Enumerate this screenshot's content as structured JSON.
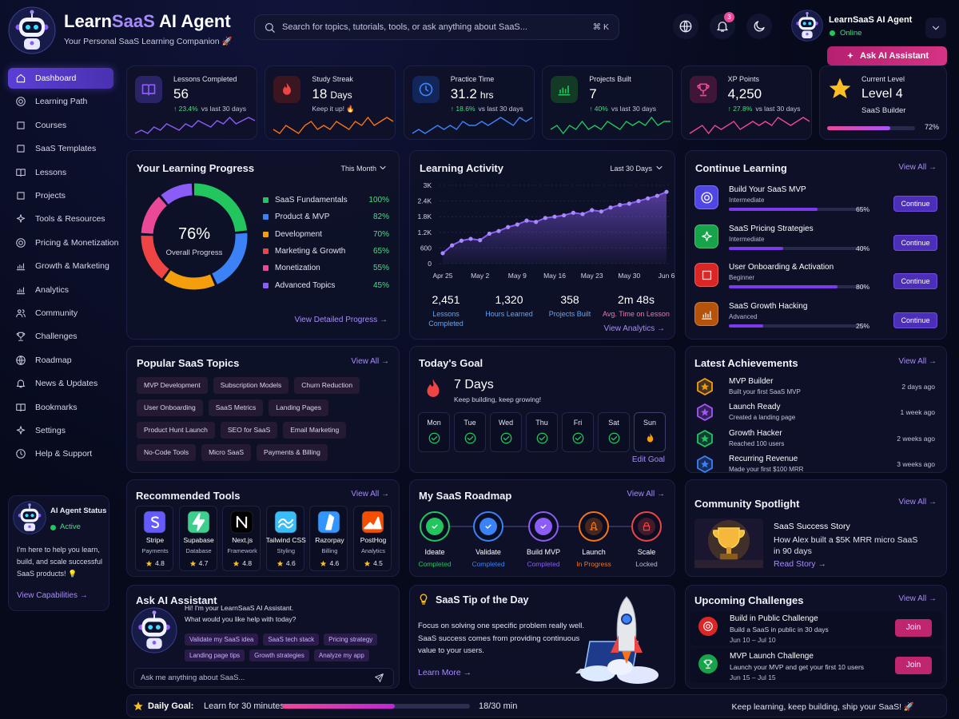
{
  "brand": {
    "name_start": "Learn",
    "name_accent": "SaaS",
    "name_end": " AI Agent",
    "tagline": "Your Personal SaaS Learning Companion 🚀"
  },
  "search": {
    "placeholder": "Search for topics, tutorials, tools, or ask anything about SaaS...",
    "shortcut": "⌘ K"
  },
  "notifications": "3",
  "profile": {
    "name": "LearnSaaS AI Agent",
    "status": "Online"
  },
  "ask_button": "Ask AI Assistant",
  "nav_active": 0,
  "nav": [
    "Dashboard",
    "Learning Path",
    "Courses",
    "SaaS Templates",
    "Lessons",
    "Projects",
    "Tools & Resources",
    "Pricing & Monetization",
    "Growth & Marketing",
    "Analytics",
    "Community",
    "Challenges",
    "Roadmap",
    "News & Updates",
    "Bookmarks",
    "Settings",
    "Help & Support"
  ],
  "agent_status": {
    "title": "AI Agent Status",
    "status": "Active",
    "text": "I'm here to help you learn, build, and scale successful SaaS products! 💡",
    "link": "View Capabilities →"
  },
  "stats": [
    {
      "label": "Lessons Completed",
      "value": "56",
      "change": "↑ 23.4%",
      "note": "vs last 30 days",
      "color": "#8b5cf6",
      "spark": [
        3,
        4,
        3,
        5,
        4,
        6,
        5,
        4,
        6,
        5,
        7,
        6,
        5,
        7,
        6,
        8,
        6,
        7,
        8,
        7
      ]
    },
    {
      "label": "Study Streak",
      "value": "18",
      "unit": "Days",
      "note": "Keep it up! 🔥",
      "color": "#f97316",
      "spark": [
        4,
        3,
        5,
        4,
        3,
        5,
        6,
        4,
        5,
        4,
        6,
        5,
        4,
        6,
        5,
        7,
        5,
        6,
        7,
        6
      ]
    },
    {
      "label": "Practice Time",
      "value": "31.2",
      "unit": "hrs",
      "change": "↑ 18.6%",
      "note": "vs last 30 days",
      "color": "#3b82f6",
      "spark": [
        3,
        4,
        3,
        4,
        5,
        4,
        5,
        4,
        6,
        5,
        5,
        6,
        5,
        6,
        7,
        6,
        5,
        7,
        6,
        7
      ]
    },
    {
      "label": "Projects Built",
      "value": "7",
      "change": "↑ 40%",
      "note": "vs last 30 days",
      "color": "#22c55e",
      "spark": [
        4,
        5,
        3,
        5,
        4,
        6,
        4,
        5,
        4,
        6,
        5,
        4,
        6,
        5,
        6,
        5,
        7,
        5,
        6,
        6
      ]
    },
    {
      "label": "XP Points",
      "value": "4,250",
      "change": "↑ 27.8%",
      "note": "vs last 30 days",
      "color": "#ec4899",
      "spark": [
        3,
        4,
        5,
        3,
        5,
        4,
        5,
        6,
        4,
        5,
        6,
        5,
        6,
        5,
        7,
        6,
        5,
        6,
        7,
        6
      ]
    }
  ],
  "level": {
    "label": "Current Level",
    "value": "Level 4",
    "name": "SaaS Builder",
    "progress": 72,
    "progress_label": "72%"
  },
  "learning_progress": {
    "title": "Your Learning Progress",
    "filter": "This Month",
    "center_value": "76%",
    "center_label": "Overall Progress",
    "items": [
      {
        "name": "SaaS Fundamentals",
        "value": 100,
        "label": "100%",
        "color": "#22c55e"
      },
      {
        "name": "Product & MVP",
        "value": 82,
        "label": "82%",
        "color": "#3b82f6"
      },
      {
        "name": "Development",
        "value": 70,
        "label": "70%",
        "color": "#f59e0b"
      },
      {
        "name": "Marketing & Growth",
        "value": 65,
        "label": "65%",
        "color": "#ef4444"
      },
      {
        "name": "Monetization",
        "value": 55,
        "label": "55%",
        "color": "#ec4899"
      },
      {
        "name": "Advanced Topics",
        "value": 45,
        "label": "45%",
        "color": "#8b5cf6"
      }
    ],
    "link": "View Detailed Progress →"
  },
  "activity": {
    "title": "Learning Activity",
    "filter": "Last 30 Days",
    "categories": [
      "Apr 25",
      null,
      null,
      null,
      "May 2",
      null,
      null,
      null,
      "May 9",
      null,
      null,
      null,
      "May 16",
      null,
      null,
      null,
      "May 23",
      null,
      null,
      null,
      "May 30",
      null,
      null,
      null,
      "Jun 6"
    ],
    "values": [
      400,
      700,
      880,
      950,
      900,
      1150,
      1250,
      1400,
      1500,
      1650,
      1600,
      1750,
      1800,
      1850,
      1950,
      1900,
      2050,
      2000,
      2150,
      2250,
      2300,
      2400,
      2500,
      2600,
      2750
    ],
    "ylim": [
      0,
      3000
    ],
    "yticks": [
      0,
      600,
      {
        "value": 1200,
        "label": "1.2K"
      },
      {
        "value": 1800,
        "label": "1.8K"
      },
      {
        "value": 2400,
        "label": "2.4K"
      },
      {
        "value": 3000,
        "label": "3K"
      }
    ],
    "color": "#8b5cf6",
    "summary": [
      {
        "value": "2,451",
        "label": "Lessons Completed",
        "color": "#60a5fa"
      },
      {
        "value": "1,320",
        "label": "Hours Learned",
        "color": "#60a5fa"
      },
      {
        "value": "358",
        "label": "Projects Built",
        "color": "#60a5fa"
      },
      {
        "value": "2m 48s",
        "label": "Avg. Time on Lesson",
        "color": "#f472b6"
      }
    ],
    "link": "View Analytics →"
  },
  "continue_learning": {
    "title": "Continue Learning",
    "link": "View All →",
    "items": [
      {
        "title": "Build Your SaaS MVP",
        "level": "Intermediate",
        "progress": 65,
        "progress_label": "65%",
        "action": "Continue",
        "color": "#4f46e5"
      },
      {
        "title": "SaaS Pricing Strategies",
        "level": "Intermediate",
        "progress": 40,
        "progress_label": "40%",
        "action": "Continue",
        "color": "#16a34a"
      },
      {
        "title": "User Onboarding & Activation",
        "level": "Beginner",
        "progress": 80,
        "progress_label": "80%",
        "action": "Continue",
        "color": "#dc2626"
      },
      {
        "title": "SaaS Growth Hacking",
        "level": "Advanced",
        "progress": 25,
        "progress_label": "25%",
        "action": "Continue",
        "color": "#b45309"
      }
    ]
  },
  "topics": {
    "title": "Popular SaaS Topics",
    "link": "View All →",
    "tags": [
      "MVP Development",
      "Subscription Models",
      "Churn Reduction",
      "User Onboarding",
      "SaaS Metrics",
      "Landing Pages",
      "Product Hunt Launch",
      "SEO for SaaS",
      "Email Marketing",
      "No-Code Tools",
      "Micro SaaS",
      "Payments & Billing"
    ]
  },
  "goal": {
    "title": "Today's Goal",
    "value": "7 Days",
    "note": "Keep building, keep growing!",
    "days": [
      "Mon",
      "Tue",
      "Wed",
      "Thu",
      "Fri",
      "Sat",
      "Sun"
    ],
    "link": "Edit Goal"
  },
  "achievements": {
    "title": "Latest Achievements",
    "link": "View All →",
    "items": [
      {
        "title": "MVP Builder",
        "desc": "Built your first SaaS MVP",
        "time": "2 days ago",
        "color": "#f59e0b"
      },
      {
        "title": "Launch Ready",
        "desc": "Created a landing page",
        "time": "1 week ago",
        "color": "#a855f7"
      },
      {
        "title": "Growth Hacker",
        "desc": "Reached 100 users",
        "time": "2 weeks ago",
        "color": "#22c55e"
      },
      {
        "title": "Recurring Revenue",
        "desc": "Made your first $100 MRR",
        "time": "3 weeks ago",
        "color": "#3b82f6"
      }
    ]
  },
  "tools": {
    "title": "Recommended Tools",
    "link": "View All →",
    "items": [
      {
        "name": "Stripe",
        "category": "Payments",
        "rating": "4.8",
        "color": "#635bff"
      },
      {
        "name": "Supabase",
        "category": "Database",
        "rating": "4.7",
        "color": "#3ecf8e"
      },
      {
        "name": "Next.js",
        "category": "Framework",
        "rating": "4.8",
        "color": "#000000"
      },
      {
        "name": "Tailwind CSS",
        "category": "Styling",
        "rating": "4.6",
        "color": "#38bdf8"
      },
      {
        "name": "Razorpay",
        "category": "Billing",
        "rating": "4.6",
        "color": "#3395ff"
      },
      {
        "name": "PostHog",
        "category": "Analytics",
        "rating": "4.5",
        "color": "#f54e00"
      }
    ]
  },
  "roadmap": {
    "title": "My SaaS Roadmap",
    "link": "View All →",
    "steps": [
      {
        "name": "Ideate",
        "status": "Completed",
        "color": "#22c55e"
      },
      {
        "name": "Validate",
        "status": "Completed",
        "color": "#3b82f6"
      },
      {
        "name": "Build MVP",
        "status": "Completed",
        "color": "#8b5cf6"
      },
      {
        "name": "Launch",
        "status": "In Progress",
        "color": "#f97316"
      },
      {
        "name": "Scale",
        "status": "Locked",
        "color": "#ef4444"
      }
    ]
  },
  "community": {
    "title": "Community Spotlight",
    "link": "View All →",
    "story_title": "SaaS Success Story",
    "story_text": "How Alex built a $5K MRR micro SaaS in 90 days",
    "story_link": "Read Story →"
  },
  "ask": {
    "title": "Ask AI Assistant",
    "greeting": "Hi! I'm your LearnSaaS AI Assistant.",
    "question": "What would you like help with today?",
    "chips": [
      "Validate my SaaS idea",
      "SaaS tech stack",
      "Pricing strategy",
      "Landing page tips",
      "Growth strategies",
      "Analyze my app"
    ],
    "placeholder": "Ask me anything about SaaS..."
  },
  "tip": {
    "title": "SaaS Tip of the Day",
    "text": "Focus on solving one specific problem really well. SaaS success comes from providing continuous value to your users.",
    "link": "Learn More →"
  },
  "challenges": {
    "title": "Upcoming Challenges",
    "link": "View All →",
    "items": [
      {
        "title": "Build in Public Challenge",
        "desc": "Build a SaaS in public in 30 days",
        "dates": "Jun 10 – Jul 10",
        "action": "Join",
        "color": "#dc2626"
      },
      {
        "title": "MVP Launch Challenge",
        "desc": "Launch your MVP and get your first 10 users",
        "dates": "Jun 15 – Jul 15",
        "action": "Join",
        "color": "#16a34a"
      }
    ]
  },
  "footer": {
    "goal_label": "Daily Goal:",
    "goal_text": "Learn for 30 minutes",
    "done": 18,
    "total": 30,
    "progress_label": "18/30 min",
    "motto": "Keep learning, keep building, ship your SaaS! 🚀"
  }
}
